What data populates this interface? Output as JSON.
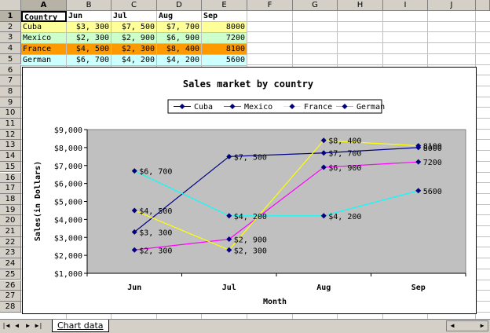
{
  "columns": [
    "A",
    "B",
    "C",
    "D",
    "E",
    "F",
    "G",
    "H",
    "I",
    "J"
  ],
  "rows": [
    "1",
    "2",
    "3",
    "4",
    "5",
    "6",
    "7",
    "8",
    "9",
    "10",
    "11",
    "12",
    "13",
    "14",
    "15",
    "16",
    "17",
    "18",
    "19",
    "20",
    "21",
    "22",
    "23",
    "24",
    "25",
    "26",
    "27",
    "28"
  ],
  "table": {
    "header": [
      "Country",
      "Jun",
      "Jul",
      "Aug",
      "Sep"
    ],
    "data": [
      {
        "country": "Cuba",
        "vals": [
          "$3, 300",
          "$7, 500",
          "$7, 700",
          "8000"
        ],
        "color": "#ffff99"
      },
      {
        "country": "Mexico",
        "vals": [
          "$2, 300",
          "$2, 900",
          "$6, 900",
          "7200"
        ],
        "color": "#ccffcc"
      },
      {
        "country": "France",
        "vals": [
          "$4, 500",
          "$2, 300",
          "$8, 400",
          "8100"
        ],
        "color": "#ff9900"
      },
      {
        "country": "German",
        "vals": [
          "$6, 700",
          "$4, 200",
          "$4, 200",
          "5600"
        ],
        "color": "#ccffff"
      }
    ]
  },
  "sheet_tab": "Chart data",
  "colors": {
    "plot_bg": "#c0c0c0",
    "cuba": "#000080",
    "mexico": "#ff00ff",
    "france": "#ffff00",
    "german": "#00ffff",
    "marker": "#000080"
  },
  "chart_data": {
    "type": "line",
    "title": "Sales market by country",
    "xlabel": "Month",
    "ylabel": "Sales(in Dollars)",
    "categories": [
      "Jun",
      "Jul",
      "Aug",
      "Sep"
    ],
    "ylim": [
      1000,
      9000
    ],
    "yticks": [
      "$1,000",
      "$2,000",
      "$3,000",
      "$4,000",
      "$5,000",
      "$6,000",
      "$7,000",
      "$8,000",
      "$9,000"
    ],
    "legend_position": "top",
    "series": [
      {
        "name": "Cuba",
        "values": [
          3300,
          7500,
          7700,
          8000
        ],
        "labels": [
          "$3, 300",
          "$7, 500",
          "$7, 700",
          "8000"
        ]
      },
      {
        "name": "Mexico",
        "values": [
          2300,
          2900,
          6900,
          7200
        ],
        "labels": [
          "$2, 300",
          "$2, 900",
          "$6, 900",
          "7200"
        ]
      },
      {
        "name": "France",
        "values": [
          4500,
          2300,
          8400,
          8100
        ],
        "labels": [
          "$4, 500",
          "$2, 300",
          "$8, 400",
          "8100"
        ]
      },
      {
        "name": "German",
        "values": [
          6700,
          4200,
          4200,
          5600
        ],
        "labels": [
          "$6, 700",
          "$4, 200",
          "$4, 200",
          "5600"
        ]
      }
    ]
  }
}
